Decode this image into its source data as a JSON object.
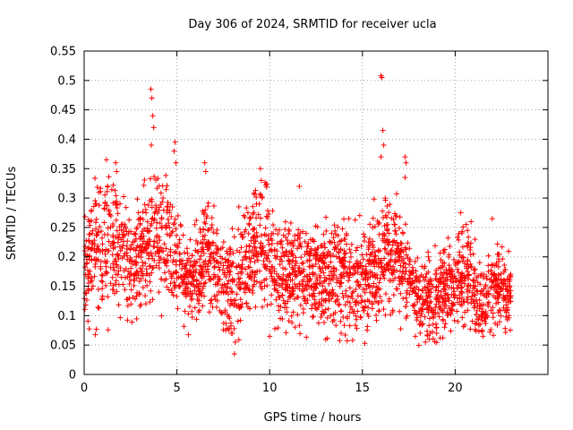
{
  "chart_data": {
    "type": "scatter",
    "title": "Day 306 of 2024, SRMTID for receiver ucla",
    "xlabel": "GPS time / hours",
    "ylabel": "SRMTID / TECUs",
    "xlim": [
      0,
      25
    ],
    "ylim": [
      0,
      0.55
    ],
    "xticks": [
      0,
      5,
      10,
      15,
      20
    ],
    "yticks": [
      0,
      0.05,
      0.1,
      0.15,
      0.2,
      0.25,
      0.3,
      0.35,
      0.4,
      0.45,
      0.5,
      0.55
    ],
    "grid": true,
    "marker": "+",
    "color": "#ff0000",
    "x_data_range": [
      0,
      23
    ],
    "envelope": [
      {
        "x": 0.0,
        "center": 0.18,
        "spread": 0.06
      },
      {
        "x": 0.7,
        "center": 0.21,
        "spread": 0.08
      },
      {
        "x": 1.3,
        "center": 0.24,
        "spread": 0.08
      },
      {
        "x": 1.8,
        "center": 0.22,
        "spread": 0.07
      },
      {
        "x": 2.3,
        "center": 0.18,
        "spread": 0.06
      },
      {
        "x": 2.8,
        "center": 0.19,
        "spread": 0.06
      },
      {
        "x": 3.3,
        "center": 0.22,
        "spread": 0.07
      },
      {
        "x": 3.8,
        "center": 0.25,
        "spread": 0.09
      },
      {
        "x": 4.3,
        "center": 0.23,
        "spread": 0.08
      },
      {
        "x": 4.8,
        "center": 0.2,
        "spread": 0.07
      },
      {
        "x": 5.5,
        "center": 0.17,
        "spread": 0.05
      },
      {
        "x": 6.0,
        "center": 0.16,
        "spread": 0.05
      },
      {
        "x": 6.6,
        "center": 0.22,
        "spread": 0.06
      },
      {
        "x": 7.3,
        "center": 0.17,
        "spread": 0.06
      },
      {
        "x": 8.0,
        "center": 0.14,
        "spread": 0.06
      },
      {
        "x": 8.7,
        "center": 0.18,
        "spread": 0.06
      },
      {
        "x": 9.5,
        "center": 0.24,
        "spread": 0.07
      },
      {
        "x": 10.3,
        "center": 0.17,
        "spread": 0.06
      },
      {
        "x": 11.2,
        "center": 0.16,
        "spread": 0.06
      },
      {
        "x": 12.0,
        "center": 0.18,
        "spread": 0.06
      },
      {
        "x": 13.0,
        "center": 0.16,
        "spread": 0.06
      },
      {
        "x": 14.0,
        "center": 0.17,
        "spread": 0.07
      },
      {
        "x": 15.0,
        "center": 0.15,
        "spread": 0.06
      },
      {
        "x": 16.0,
        "center": 0.2,
        "spread": 0.07
      },
      {
        "x": 17.0,
        "center": 0.19,
        "spread": 0.06
      },
      {
        "x": 18.0,
        "center": 0.13,
        "spread": 0.05
      },
      {
        "x": 19.0,
        "center": 0.13,
        "spread": 0.05
      },
      {
        "x": 20.0,
        "center": 0.15,
        "spread": 0.05
      },
      {
        "x": 20.7,
        "center": 0.17,
        "spread": 0.06
      },
      {
        "x": 21.5,
        "center": 0.12,
        "spread": 0.04
      },
      {
        "x": 22.3,
        "center": 0.15,
        "spread": 0.05
      },
      {
        "x": 23.0,
        "center": 0.13,
        "spread": 0.04
      }
    ],
    "outliers": [
      {
        "x": 3.6,
        "y": 0.485
      },
      {
        "x": 3.65,
        "y": 0.47
      },
      {
        "x": 3.7,
        "y": 0.44
      },
      {
        "x": 3.75,
        "y": 0.42
      },
      {
        "x": 3.62,
        "y": 0.39
      },
      {
        "x": 4.9,
        "y": 0.395
      },
      {
        "x": 4.85,
        "y": 0.38
      },
      {
        "x": 4.95,
        "y": 0.36
      },
      {
        "x": 1.2,
        "y": 0.365
      },
      {
        "x": 1.7,
        "y": 0.36
      },
      {
        "x": 1.75,
        "y": 0.345
      },
      {
        "x": 6.5,
        "y": 0.36
      },
      {
        "x": 6.55,
        "y": 0.345
      },
      {
        "x": 9.5,
        "y": 0.35
      },
      {
        "x": 9.55,
        "y": 0.33
      },
      {
        "x": 11.6,
        "y": 0.32
      },
      {
        "x": 16.0,
        "y": 0.508
      },
      {
        "x": 16.05,
        "y": 0.505
      },
      {
        "x": 16.1,
        "y": 0.415
      },
      {
        "x": 16.15,
        "y": 0.39
      },
      {
        "x": 16.0,
        "y": 0.37
      },
      {
        "x": 17.3,
        "y": 0.37
      },
      {
        "x": 17.35,
        "y": 0.36
      },
      {
        "x": 17.3,
        "y": 0.335
      },
      {
        "x": 20.3,
        "y": 0.275
      },
      {
        "x": 22.0,
        "y": 0.265
      },
      {
        "x": 8.1,
        "y": 0.035
      },
      {
        "x": 8.15,
        "y": 0.055
      },
      {
        "x": 8.0,
        "y": 0.07
      },
      {
        "x": 10.0,
        "y": 0.065
      },
      {
        "x": 18.4,
        "y": 0.055
      },
      {
        "x": 18.6,
        "y": 0.06
      },
      {
        "x": 19.0,
        "y": 0.07
      },
      {
        "x": 21.5,
        "y": 0.065
      },
      {
        "x": 21.45,
        "y": 0.075
      }
    ]
  }
}
